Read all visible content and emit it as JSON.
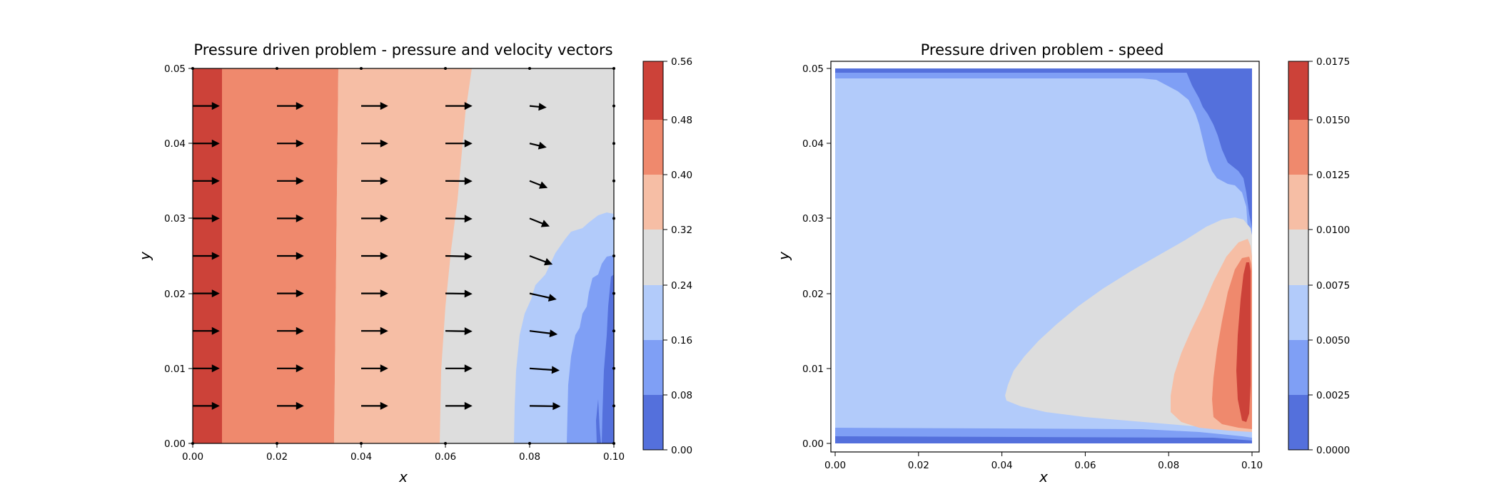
{
  "colors": {
    "levels_low_to_high": [
      "#5470dc",
      "#7f9ff5",
      "#b2cbfa",
      "#dddddd",
      "#f6bea5",
      "#ef896d",
      "#cc4239"
    ],
    "arrows": "#000000",
    "frame": "#000000"
  },
  "chart_data": [
    {
      "type": "heatmap",
      "title": "Pressure driven problem - pressure and velocity vectors",
      "xlabel": "x",
      "ylabel": "y",
      "xlim": [
        0.0,
        0.1
      ],
      "ylim": [
        0.0,
        0.05
      ],
      "xticks": [
        "0.00",
        "0.02",
        "0.04",
        "0.06",
        "0.08",
        "0.10"
      ],
      "yticks": [
        "0.00",
        "0.01",
        "0.02",
        "0.03",
        "0.04",
        "0.05"
      ],
      "colorbar": {
        "levels": [
          0.0,
          0.08,
          0.16,
          0.24,
          0.32,
          0.4,
          0.48,
          0.56
        ],
        "labels": [
          "0.00",
          "0.08",
          "0.16",
          "0.24",
          "0.32",
          "0.40",
          "0.48",
          "0.56"
        ]
      },
      "regions": [
        {
          "level": 6,
          "range": [
            0.48,
            0.56
          ],
          "boundary_x_at_y": {
            "0.00": 0.007,
            "0.05": 0.007
          }
        },
        {
          "level": 5,
          "range": [
            0.4,
            0.48
          ],
          "boundary_x_at_y": {
            "0.00": 0.0335,
            "0.05": 0.035
          }
        },
        {
          "level": 4,
          "range": [
            0.32,
            0.4
          ],
          "boundary_x_at_y": {
            "0.00": 0.058,
            "0.02": 0.0605,
            "0.04": 0.0635,
            "0.05": 0.0665
          }
        },
        {
          "level": 3,
          "range": [
            0.24,
            0.32
          ],
          "boundary_x_at_y": {
            "0.00": 0.0775,
            "0.01": 0.0785,
            "0.02": 0.084,
            "0.025": 0.09,
            "0.030": 0.097
          }
        },
        {
          "level": 2,
          "range": [
            0.16,
            0.24
          ],
          "boundary_x_at_y": {
            "0.00": 0.089,
            "0.01": 0.09,
            "0.02": 0.094,
            "0.025": 0.098
          }
        },
        {
          "level": 1,
          "range": [
            0.08,
            0.16
          ],
          "boundary_x_at_y": {
            "0.00": 0.0955,
            "0.01": 0.0965,
            "0.02": 0.099
          }
        }
      ],
      "vectors": {
        "x": [
          0.0,
          0.02,
          0.04,
          0.06,
          0.08,
          0.1
        ],
        "y": [
          0.0,
          0.005,
          0.01,
          0.015,
          0.02,
          0.025,
          0.03,
          0.035,
          0.04,
          0.045,
          0.05
        ],
        "u": [
          [
            0,
            0,
            0,
            0,
            0,
            0
          ],
          [
            0.0135,
            0.0135,
            0.0135,
            0.0135,
            0.0155,
            0
          ],
          [
            0.0135,
            0.0135,
            0.0135,
            0.0135,
            0.015,
            0
          ],
          [
            0.0135,
            0.0135,
            0.0135,
            0.0135,
            0.014,
            0
          ],
          [
            0.0135,
            0.0135,
            0.0135,
            0.0135,
            0.0135,
            0
          ],
          [
            0.0135,
            0.0135,
            0.0135,
            0.0135,
            0.0115,
            0
          ],
          [
            0.0135,
            0.0135,
            0.0135,
            0.0135,
            0.01,
            0
          ],
          [
            0.0135,
            0.0135,
            0.0135,
            0.0135,
            0.009,
            0
          ],
          [
            0.0135,
            0.0135,
            0.0135,
            0.0135,
            0.0085,
            0
          ],
          [
            0.0135,
            0.0135,
            0.0135,
            0.0135,
            0.0085,
            0
          ],
          [
            0,
            0,
            0,
            0,
            0,
            0
          ]
        ],
        "v": [
          [
            0,
            0,
            0,
            0,
            0,
            0
          ],
          [
            0,
            0,
            0,
            0,
            -0.0002,
            0
          ],
          [
            0,
            0,
            0,
            0,
            -0.001,
            0
          ],
          [
            0,
            0,
            0,
            -0.0002,
            -0.0017,
            0
          ],
          [
            0,
            0,
            0,
            -0.0002,
            -0.003,
            0
          ],
          [
            0,
            0,
            0,
            -0.0003,
            -0.0043,
            0
          ],
          [
            0,
            0,
            0,
            -0.0002,
            -0.004,
            0
          ],
          [
            0,
            0,
            0,
            -0.0001,
            -0.0035,
            0
          ],
          [
            0,
            0,
            0,
            0,
            -0.002,
            0
          ],
          [
            0,
            0,
            0,
            0,
            -0.0008,
            0
          ],
          [
            0,
            0,
            0,
            0,
            0,
            0
          ]
        ]
      }
    },
    {
      "type": "heatmap",
      "title": "Pressure driven problem - speed",
      "xlabel": "x",
      "ylabel": "y",
      "xlim": [
        0.0,
        0.1
      ],
      "ylim": [
        0.0,
        0.05
      ],
      "xticks": [
        "0.00",
        "0.02",
        "0.04",
        "0.06",
        "0.08",
        "0.10"
      ],
      "yticks": [
        "0.00",
        "0.01",
        "0.02",
        "0.03",
        "0.04",
        "0.05"
      ],
      "colorbar": {
        "levels": [
          0.0,
          0.0025,
          0.005,
          0.0075,
          0.01,
          0.0125,
          0.015,
          0.0175
        ],
        "labels": [
          "0.0000",
          "0.0025",
          "0.0050",
          "0.0075",
          "0.0100",
          "0.0125",
          "0.0150",
          "0.0175"
        ]
      },
      "regions": [
        {
          "level": 0,
          "range": [
            0.0,
            0.0025
          ],
          "location": "walls y=0, y=0.05 and upper-right near x=0.1"
        },
        {
          "level": 1,
          "range": [
            0.0025,
            0.005
          ],
          "location": "thin wall layers and upper-right transition"
        },
        {
          "level": 2,
          "range": [
            0.005,
            0.0075
          ],
          "location": "bulk of domain"
        },
        {
          "level": 3,
          "range": [
            0.0075,
            0.01
          ],
          "location": "lobe from x≈0.041 to 0.1, y≈0.005–0.029"
        },
        {
          "level": 4,
          "range": [
            0.01,
            0.0125
          ],
          "location": "x≈0.080–0.099, y≈0.002–0.027"
        },
        {
          "level": 5,
          "range": [
            0.0125,
            0.015
          ],
          "location": "x≈0.090–0.099, y≈0.002–0.025"
        },
        {
          "level": 6,
          "range": [
            0.015,
            0.0175
          ],
          "location": "x≈0.095–0.099, y≈0.003–0.024"
        }
      ]
    }
  ]
}
